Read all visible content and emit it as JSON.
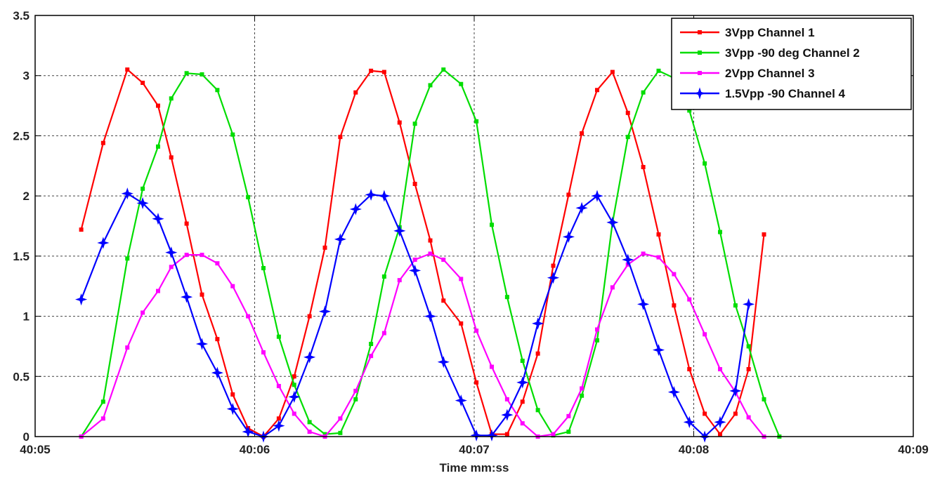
{
  "chart_data": {
    "type": "line",
    "title": "",
    "xlabel": "Time mm:ss",
    "ylabel": "",
    "ylim": [
      0,
      3.5
    ],
    "xlim": [
      0,
      4
    ],
    "x_ticks": [
      {
        "value": 0,
        "label": "40:05"
      },
      {
        "value": 1,
        "label": "40:06"
      },
      {
        "value": 2,
        "label": "40:07"
      },
      {
        "value": 3,
        "label": "40:08"
      },
      {
        "value": 4,
        "label": "40:09"
      }
    ],
    "y_ticks": [
      {
        "value": 0,
        "label": "0"
      },
      {
        "value": 0.5,
        "label": "0.5"
      },
      {
        "value": 1,
        "label": "1"
      },
      {
        "value": 1.5,
        "label": "1.5"
      },
      {
        "value": 2,
        "label": "2"
      },
      {
        "value": 2.5,
        "label": "2.5"
      },
      {
        "value": 3,
        "label": "3"
      },
      {
        "value": 3.5,
        "label": "3.5"
      }
    ],
    "grid": true,
    "legend_position": "top-right",
    "series": [
      {
        "name": "3Vpp Channel 1",
        "color": "#ff0000",
        "marker": "square",
        "points": [
          [
            0.21,
            1.72
          ],
          [
            0.31,
            2.44
          ],
          [
            0.42,
            3.05
          ],
          [
            0.49,
            2.94
          ],
          [
            0.56,
            2.75
          ],
          [
            0.62,
            2.32
          ],
          [
            0.69,
            1.77
          ],
          [
            0.76,
            1.18
          ],
          [
            0.83,
            0.81
          ],
          [
            0.9,
            0.35
          ],
          [
            0.97,
            0.07
          ],
          [
            1.04,
            0.0
          ],
          [
            1.11,
            0.15
          ],
          [
            1.18,
            0.5
          ],
          [
            1.25,
            1.0
          ],
          [
            1.32,
            1.57
          ],
          [
            1.39,
            2.49
          ],
          [
            1.46,
            2.86
          ],
          [
            1.53,
            3.04
          ],
          [
            1.59,
            3.03
          ],
          [
            1.66,
            2.61
          ],
          [
            1.73,
            2.1
          ],
          [
            1.8,
            1.63
          ],
          [
            1.86,
            1.13
          ],
          [
            1.94,
            0.94
          ],
          [
            2.01,
            0.45
          ],
          [
            2.08,
            0.02
          ],
          [
            2.15,
            0.02
          ],
          [
            2.22,
            0.29
          ],
          [
            2.29,
            0.69
          ],
          [
            2.36,
            1.42
          ],
          [
            2.43,
            2.01
          ],
          [
            2.49,
            2.52
          ],
          [
            2.56,
            2.88
          ],
          [
            2.63,
            3.03
          ],
          [
            2.7,
            2.69
          ],
          [
            2.77,
            2.24
          ],
          [
            2.84,
            1.68
          ],
          [
            2.91,
            1.09
          ],
          [
            2.98,
            0.56
          ],
          [
            3.05,
            0.19
          ],
          [
            3.12,
            0.02
          ],
          [
            3.19,
            0.19
          ],
          [
            3.25,
            0.56
          ],
          [
            3.32,
            1.68
          ]
        ]
      },
      {
        "name": "3Vpp -90 deg Channel 2",
        "color": "#00dd00",
        "marker": "square",
        "points": [
          [
            0.21,
            0.0
          ],
          [
            0.31,
            0.29
          ],
          [
            0.42,
            1.48
          ],
          [
            0.49,
            2.06
          ],
          [
            0.56,
            2.41
          ],
          [
            0.62,
            2.81
          ],
          [
            0.69,
            3.02
          ],
          [
            0.76,
            3.01
          ],
          [
            0.83,
            2.88
          ],
          [
            0.9,
            2.51
          ],
          [
            0.97,
            1.99
          ],
          [
            1.04,
            1.4
          ],
          [
            1.11,
            0.83
          ],
          [
            1.18,
            0.43
          ],
          [
            1.25,
            0.12
          ],
          [
            1.32,
            0.02
          ],
          [
            1.39,
            0.03
          ],
          [
            1.46,
            0.31
          ],
          [
            1.53,
            0.77
          ],
          [
            1.59,
            1.33
          ],
          [
            1.66,
            1.74
          ],
          [
            1.73,
            2.6
          ],
          [
            1.8,
            2.92
          ],
          [
            1.86,
            3.05
          ],
          [
            1.94,
            2.93
          ],
          [
            2.01,
            2.62
          ],
          [
            2.08,
            1.76
          ],
          [
            2.15,
            1.16
          ],
          [
            2.22,
            0.63
          ],
          [
            2.29,
            0.22
          ],
          [
            2.36,
            0.01
          ],
          [
            2.43,
            0.04
          ],
          [
            2.49,
            0.34
          ],
          [
            2.56,
            0.8
          ],
          [
            2.63,
            1.78
          ],
          [
            2.7,
            2.49
          ],
          [
            2.77,
            2.86
          ],
          [
            2.84,
            3.04
          ],
          [
            2.91,
            2.98
          ],
          [
            2.98,
            2.71
          ],
          [
            3.05,
            2.27
          ],
          [
            3.12,
            1.7
          ],
          [
            3.19,
            1.09
          ],
          [
            3.25,
            0.75
          ],
          [
            3.32,
            0.31
          ],
          [
            3.39,
            0.0
          ]
        ]
      },
      {
        "name": "2Vpp Channel 3",
        "color": "#ff00ff",
        "marker": "square",
        "points": [
          [
            0.21,
            0.0
          ],
          [
            0.31,
            0.15
          ],
          [
            0.42,
            0.74
          ],
          [
            0.49,
            1.03
          ],
          [
            0.56,
            1.21
          ],
          [
            0.62,
            1.41
          ],
          [
            0.69,
            1.51
          ],
          [
            0.76,
            1.51
          ],
          [
            0.83,
            1.44
          ],
          [
            0.9,
            1.25
          ],
          [
            0.97,
            1.0
          ],
          [
            1.04,
            0.7
          ],
          [
            1.11,
            0.42
          ],
          [
            1.18,
            0.19
          ],
          [
            1.25,
            0.04
          ],
          [
            1.32,
            0.0
          ],
          [
            1.39,
            0.15
          ],
          [
            1.46,
            0.38
          ],
          [
            1.53,
            0.67
          ],
          [
            1.59,
            0.86
          ],
          [
            1.66,
            1.3
          ],
          [
            1.73,
            1.47
          ],
          [
            1.8,
            1.52
          ],
          [
            1.86,
            1.47
          ],
          [
            1.94,
            1.31
          ],
          [
            2.01,
            0.88
          ],
          [
            2.08,
            0.58
          ],
          [
            2.15,
            0.31
          ],
          [
            2.22,
            0.11
          ],
          [
            2.29,
            0.0
          ],
          [
            2.36,
            0.02
          ],
          [
            2.43,
            0.17
          ],
          [
            2.49,
            0.4
          ],
          [
            2.56,
            0.89
          ],
          [
            2.63,
            1.24
          ],
          [
            2.7,
            1.43
          ],
          [
            2.77,
            1.52
          ],
          [
            2.84,
            1.49
          ],
          [
            2.91,
            1.35
          ],
          [
            2.98,
            1.14
          ],
          [
            3.05,
            0.85
          ],
          [
            3.12,
            0.56
          ],
          [
            3.19,
            0.37
          ],
          [
            3.25,
            0.16
          ],
          [
            3.32,
            0.0
          ]
        ]
      },
      {
        "name": "1.5Vpp -90 Channel 4",
        "color": "#0000ff",
        "marker": "star",
        "points": [
          [
            0.21,
            1.14
          ],
          [
            0.31,
            1.61
          ],
          [
            0.42,
            2.02
          ],
          [
            0.49,
            1.94
          ],
          [
            0.56,
            1.81
          ],
          [
            0.62,
            1.53
          ],
          [
            0.69,
            1.16
          ],
          [
            0.76,
            0.77
          ],
          [
            0.83,
            0.53
          ],
          [
            0.9,
            0.23
          ],
          [
            0.97,
            0.04
          ],
          [
            1.04,
            0.0
          ],
          [
            1.11,
            0.09
          ],
          [
            1.18,
            0.33
          ],
          [
            1.25,
            0.66
          ],
          [
            1.32,
            1.04
          ],
          [
            1.39,
            1.64
          ],
          [
            1.46,
            1.89
          ],
          [
            1.53,
            2.01
          ],
          [
            1.59,
            2.0
          ],
          [
            1.66,
            1.71
          ],
          [
            1.73,
            1.38
          ],
          [
            1.8,
            1.0
          ],
          [
            1.86,
            0.62
          ],
          [
            1.94,
            0.3
          ],
          [
            2.01,
            0.01
          ],
          [
            2.08,
            0.01
          ],
          [
            2.15,
            0.18
          ],
          [
            2.22,
            0.45
          ],
          [
            2.29,
            0.94
          ],
          [
            2.36,
            1.32
          ],
          [
            2.43,
            1.66
          ],
          [
            2.49,
            1.9
          ],
          [
            2.56,
            2.0
          ],
          [
            2.63,
            1.78
          ],
          [
            2.7,
            1.47
          ],
          [
            2.77,
            1.1
          ],
          [
            2.84,
            0.72
          ],
          [
            2.91,
            0.37
          ],
          [
            2.98,
            0.12
          ],
          [
            3.05,
            0.0
          ],
          [
            3.12,
            0.12
          ],
          [
            3.19,
            0.38
          ],
          [
            3.25,
            1.1
          ]
        ]
      }
    ]
  }
}
